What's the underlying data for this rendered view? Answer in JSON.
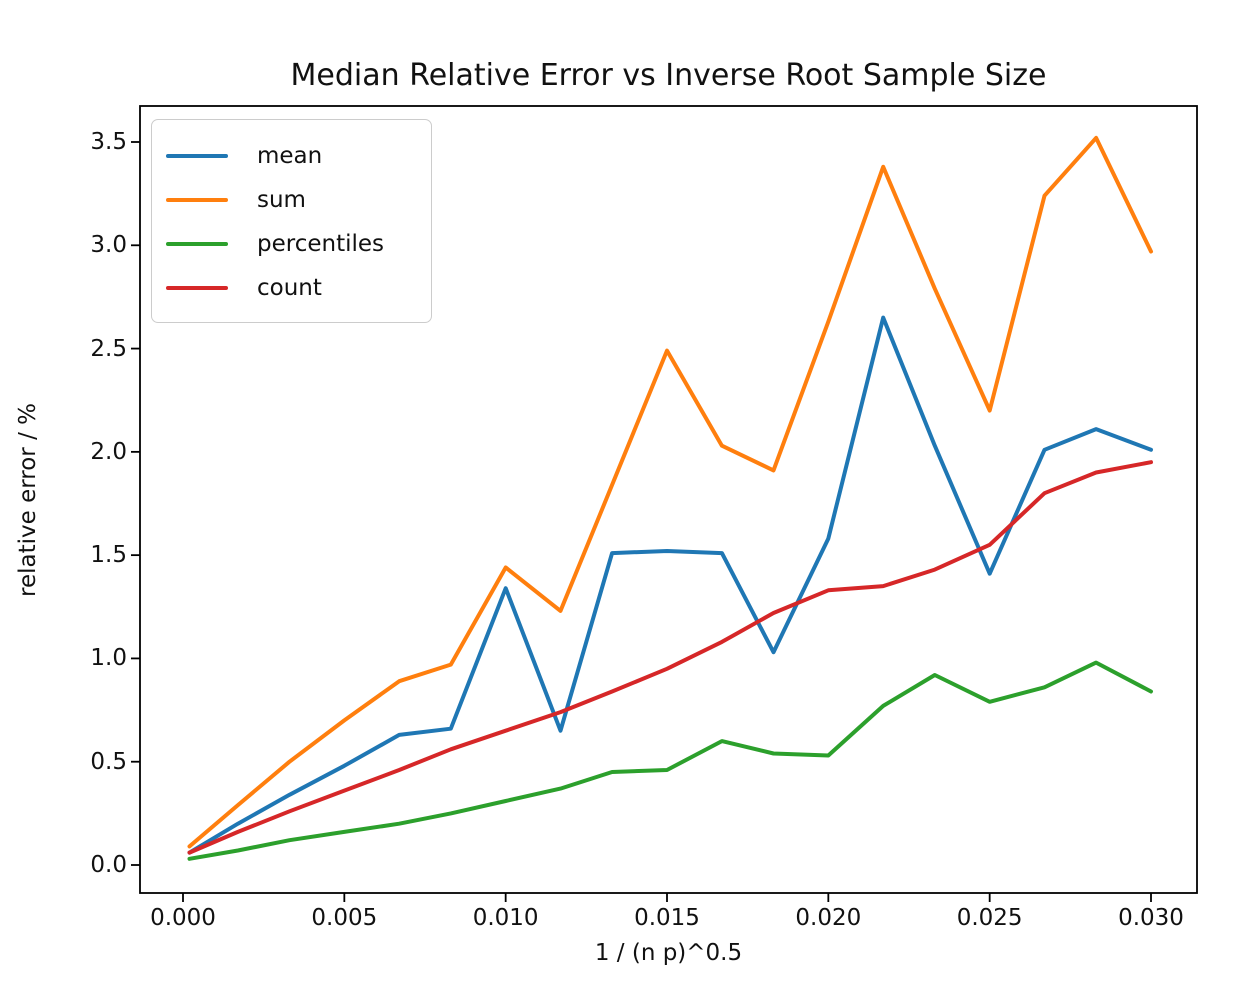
{
  "chart_data": {
    "type": "line",
    "title": "Median Relative Error vs Inverse Root Sample Size",
    "xlabel": "1 / (n p)^0.5",
    "ylabel": "relative error / %",
    "x_tick_labels": [
      "0.000",
      "0.005",
      "0.010",
      "0.015",
      "0.020",
      "0.025",
      "0.030"
    ],
    "y_tick_labels": [
      "0.0",
      "0.5",
      "1.0",
      "1.5",
      "2.0",
      "2.5",
      "3.0",
      "3.5"
    ],
    "xlim": [
      -0.0013,
      0.0314
    ],
    "ylim": [
      -0.145,
      3.665
    ],
    "grid": false,
    "legend_position": "upper left",
    "x": [
      0.0002,
      0.0017,
      0.0033,
      0.005,
      0.0067,
      0.0083,
      0.01,
      0.0117,
      0.0133,
      0.015,
      0.0167,
      0.0183,
      0.02,
      0.0217,
      0.0233,
      0.025,
      0.0267,
      0.0283,
      0.03
    ],
    "series": [
      {
        "name": "mean",
        "color": "#1f77b4",
        "values": [
          0.06,
          0.2,
          0.34,
          0.48,
          0.63,
          0.66,
          1.34,
          0.65,
          1.51,
          1.52,
          1.51,
          1.03,
          1.58,
          2.65,
          2.03,
          1.41,
          2.01,
          2.11,
          2.01
        ]
      },
      {
        "name": "sum",
        "color": "#ff7f0e",
        "values": [
          0.09,
          0.29,
          0.5,
          0.7,
          0.89,
          0.97,
          1.44,
          1.23,
          1.84,
          2.49,
          2.03,
          1.91,
          2.63,
          3.38,
          2.79,
          2.2,
          3.24,
          3.52,
          2.97
        ]
      },
      {
        "name": "percentiles",
        "color": "#2ca02c",
        "values": [
          0.03,
          0.07,
          0.12,
          0.16,
          0.2,
          0.25,
          0.31,
          0.37,
          0.45,
          0.46,
          0.6,
          0.54,
          0.53,
          0.77,
          0.92,
          0.79,
          0.86,
          0.98,
          0.84
        ]
      },
      {
        "name": "count",
        "color": "#d62728",
        "values": [
          0.06,
          0.16,
          0.26,
          0.36,
          0.46,
          0.56,
          0.65,
          0.74,
          0.84,
          0.95,
          1.08,
          1.22,
          1.33,
          1.35,
          1.43,
          1.55,
          1.8,
          1.9,
          1.95
        ]
      }
    ],
    "axis_color": "#000000",
    "background_color": "#ffffff"
  }
}
